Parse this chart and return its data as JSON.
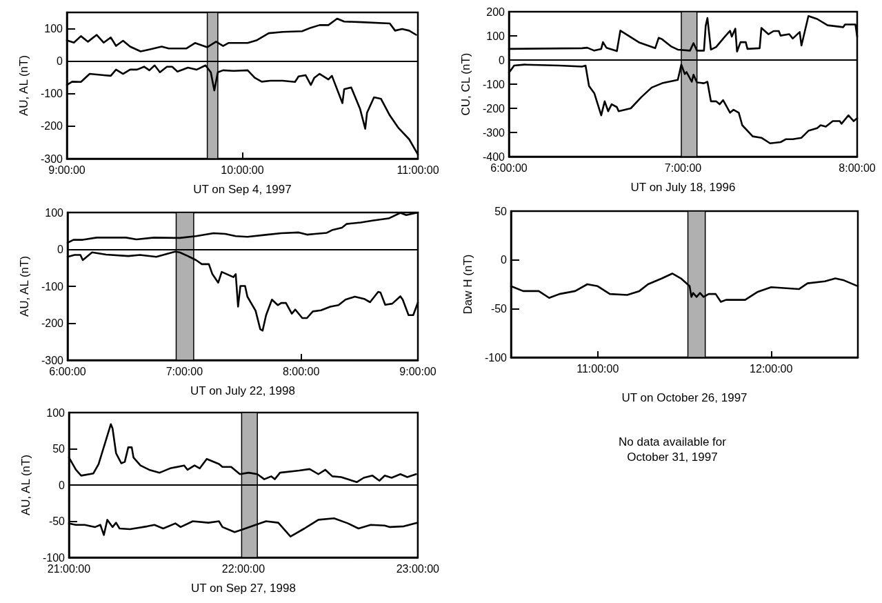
{
  "chart_data": [
    {
      "type": "line",
      "xlabel": "UT on Sep 4, 1997",
      "ylabel": "AU, AL (nT)",
      "marker": "none",
      "line_style": "solid",
      "grid": false,
      "xlim": [
        9,
        11
      ],
      "xticks": [
        {
          "value": 9,
          "label": "9:00:00"
        },
        {
          "value": 10,
          "label": "10:00:00"
        },
        {
          "value": 11,
          "label": "11:00:00"
        }
      ],
      "ylim": [
        -300,
        150
      ],
      "yticks": [
        -300,
        -200,
        -100,
        0,
        100
      ],
      "ref_lines": [
        {
          "axis": "y",
          "value": 0,
          "color": "#000000"
        }
      ],
      "bands": [
        {
          "axis": "x",
          "from": 9.8,
          "to": 9.86,
          "color": "#b0b0b0"
        }
      ],
      "series": [
        {
          "color": "#000000",
          "x": [
            9.0,
            9.04,
            9.08,
            9.12,
            9.17,
            9.21,
            9.25,
            9.28,
            9.32,
            9.36,
            9.42,
            9.47,
            9.54,
            9.58,
            9.68,
            9.73,
            9.8,
            9.85,
            9.89,
            9.92,
            10.03,
            10.08,
            10.15,
            10.23,
            10.34,
            10.39,
            10.44,
            10.49,
            10.54,
            10.58,
            10.68,
            10.84,
            10.87,
            10.91,
            10.95,
            10.99
          ],
          "values": [
            64,
            57,
            77,
            60,
            81,
            57,
            73,
            47,
            63,
            45,
            30,
            36,
            45,
            39,
            39,
            56,
            43,
            60,
            47,
            56,
            56,
            64,
            86,
            90,
            92,
            103,
            111,
            111,
            131,
            122,
            120,
            116,
            94,
            99,
            94,
            81
          ]
        },
        {
          "color": "#000000",
          "x": [
            9.0,
            9.03,
            9.08,
            9.13,
            9.21,
            9.25,
            9.28,
            9.32,
            9.36,
            9.4,
            9.44,
            9.47,
            9.5,
            9.53,
            9.57,
            9.6,
            9.63,
            9.69,
            9.74,
            9.79,
            9.82,
            9.84,
            9.86,
            9.89,
            9.95,
            10.03,
            10.07,
            10.11,
            10.16,
            10.23,
            10.3,
            10.32,
            10.36,
            10.39,
            10.41,
            10.44,
            10.49,
            10.51,
            10.57,
            10.58,
            10.62,
            10.67,
            10.7,
            10.71,
            10.75,
            10.79,
            10.84,
            10.89,
            10.95,
            11.0
          ],
          "values": [
            -73,
            -63,
            -64,
            -39,
            -43,
            -45,
            -26,
            -39,
            -26,
            -26,
            -17,
            -28,
            -13,
            -34,
            -17,
            -17,
            -32,
            -20,
            -26,
            -13,
            -34,
            -90,
            -34,
            -28,
            -30,
            -28,
            -51,
            -63,
            -60,
            -60,
            -64,
            -47,
            -43,
            -73,
            -51,
            -39,
            -56,
            -45,
            -129,
            -86,
            -81,
            -146,
            -208,
            -159,
            -111,
            -116,
            -167,
            -206,
            -240,
            -287
          ]
        }
      ]
    },
    {
      "type": "line",
      "xlabel": "UT on July 18, 1996",
      "ylabel": "CU, CL (nT)",
      "marker": "none",
      "line_style": "solid",
      "grid": false,
      "xlim": [
        6,
        8
      ],
      "xticks": [
        {
          "value": 6,
          "label": "6:00:00"
        },
        {
          "value": 7,
          "label": "7:00:00"
        },
        {
          "value": 8,
          "label": "8:00:00"
        }
      ],
      "ylim": [
        -400,
        200
      ],
      "yticks": [
        -400,
        -300,
        -200,
        -100,
        0,
        100,
        200
      ],
      "ref_lines": [
        {
          "axis": "y",
          "value": 0,
          "color": "#000000"
        }
      ],
      "bands": [
        {
          "axis": "x",
          "from": 6.99,
          "to": 7.08,
          "color": "#b0b0b0"
        }
      ],
      "series": [
        {
          "color": "#000000",
          "x": [
            6.0,
            6.42,
            6.45,
            6.49,
            6.53,
            6.54,
            6.56,
            6.62,
            6.64,
            6.75,
            6.84,
            6.86,
            6.88,
            6.93,
            6.97,
            7.04,
            7.06,
            7.08,
            7.12,
            7.13,
            7.14,
            7.16,
            7.19,
            7.24,
            7.27,
            7.28,
            7.3,
            7.31,
            7.33,
            7.36,
            7.37,
            7.44,
            7.45,
            7.49,
            7.52,
            7.55,
            7.56,
            7.61,
            7.63,
            7.67,
            7.68,
            7.72,
            7.77,
            7.83,
            7.92,
            7.93,
            7.99,
            8.0
          ],
          "values": [
            46,
            49,
            51,
            39,
            46,
            74,
            51,
            37,
            122,
            72,
            49,
            92,
            86,
            57,
            43,
            39,
            70,
            39,
            39,
            141,
            174,
            43,
            54,
            97,
            121,
            97,
            130,
            35,
            74,
            74,
            46,
            49,
            133,
            107,
            120,
            120,
            101,
            107,
            89,
            116,
            60,
            182,
            170,
            144,
            136,
            147,
            147,
            97
          ]
        },
        {
          "color": "#000000",
          "x": [
            6.0,
            6.03,
            6.09,
            6.29,
            6.42,
            6.44,
            6.46,
            6.49,
            6.53,
            6.55,
            6.57,
            6.59,
            6.62,
            6.63,
            6.7,
            6.76,
            6.82,
            6.88,
            6.97,
            6.99,
            7.01,
            7.02,
            7.05,
            7.06,
            7.08,
            7.12,
            7.14,
            7.16,
            7.19,
            7.21,
            7.23,
            7.27,
            7.29,
            7.32,
            7.34,
            7.4,
            7.45,
            7.5,
            7.56,
            7.59,
            7.63,
            7.68,
            7.72,
            7.77,
            7.79,
            7.82,
            7.86,
            7.9,
            7.91,
            7.95,
            7.98,
            8.0
          ],
          "values": [
            -53,
            -23,
            -19,
            -23,
            -27,
            -23,
            -108,
            -137,
            -229,
            -171,
            -212,
            -183,
            -195,
            -212,
            -200,
            -154,
            -114,
            -96,
            -82,
            -19,
            -58,
            -50,
            -90,
            -61,
            -93,
            -96,
            -90,
            -171,
            -171,
            -183,
            -166,
            -218,
            -206,
            -218,
            -270,
            -316,
            -322,
            -345,
            -340,
            -328,
            -328,
            -322,
            -293,
            -282,
            -270,
            -276,
            -253,
            -253,
            -264,
            -229,
            -253,
            -241
          ]
        }
      ]
    },
    {
      "type": "line",
      "xlabel": "UT on July 22, 1998",
      "ylabel": "AU, AL (nT)",
      "marker": "none",
      "line_style": "solid",
      "grid": false,
      "xlim": [
        6,
        9
      ],
      "xticks": [
        {
          "value": 6,
          "label": "6:00:00"
        },
        {
          "value": 7,
          "label": "7:00:00"
        },
        {
          "value": 8,
          "label": "8:00:00"
        },
        {
          "value": 9,
          "label": "9:00:00"
        }
      ],
      "ylim": [
        -300,
        100
      ],
      "yticks": [
        -300,
        -200,
        -100,
        0,
        100
      ],
      "ref_lines": [
        {
          "axis": "y",
          "value": 0,
          "color": "#000000"
        }
      ],
      "bands": [
        {
          "axis": "x",
          "from": 6.93,
          "to": 7.08,
          "color": "#b0b0b0"
        }
      ],
      "series": [
        {
          "color": "#000000",
          "x": [
            6.0,
            6.05,
            6.13,
            6.25,
            6.5,
            6.59,
            6.74,
            6.96,
            7.1,
            7.25,
            7.35,
            7.44,
            7.54,
            7.71,
            7.83,
            7.98,
            8.05,
            8.12,
            8.22,
            8.27,
            8.35,
            8.39,
            8.51,
            8.61,
            8.75,
            8.85,
            8.9,
            9.0
          ],
          "values": [
            18,
            26,
            26,
            32,
            32,
            27,
            32,
            31,
            36,
            44,
            42,
            36,
            34,
            40,
            44,
            46,
            40,
            42,
            45,
            53,
            59,
            69,
            73,
            78,
            84,
            99,
            93,
            100
          ]
        },
        {
          "color": "#000000",
          "x": [
            6.0,
            6.06,
            6.11,
            6.13,
            6.21,
            6.33,
            6.52,
            6.62,
            6.76,
            6.92,
            6.96,
            7.03,
            7.1,
            7.15,
            7.21,
            7.24,
            7.29,
            7.32,
            7.42,
            7.44,
            7.46,
            7.48,
            7.52,
            7.54,
            7.61,
            7.65,
            7.67,
            7.7,
            7.75,
            7.8,
            7.83,
            7.87,
            7.92,
            7.95,
            8.01,
            8.05,
            8.1,
            8.17,
            8.25,
            8.32,
            8.38,
            8.46,
            8.54,
            8.59,
            8.66,
            8.68,
            8.72,
            8.78,
            8.85,
            8.87,
            8.92,
            8.96,
            9.0
          ],
          "values": [
            -20,
            -15,
            -15,
            -29,
            -8,
            -14,
            -18,
            -15,
            -20,
            -6,
            -8,
            -18,
            -29,
            -40,
            -40,
            -67,
            -90,
            -61,
            -75,
            -67,
            -155,
            -99,
            -99,
            -128,
            -166,
            -216,
            -220,
            -178,
            -136,
            -151,
            -145,
            -145,
            -174,
            -163,
            -186,
            -186,
            -168,
            -165,
            -155,
            -151,
            -136,
            -128,
            -134,
            -143,
            -115,
            -117,
            -150,
            -147,
            -127,
            -136,
            -178,
            -178,
            -144
          ]
        }
      ]
    },
    {
      "type": "line",
      "xlabel": "UT on October 26, 1997",
      "ylabel": "Daw H (nT)",
      "marker": "none",
      "line_style": "solid",
      "grid": false,
      "xlim": [
        10.5,
        12.5
      ],
      "xticks": [
        {
          "value": 11,
          "label": "11:00:00"
        },
        {
          "value": 12,
          "label": "12:00:00"
        }
      ],
      "ylim": [
        -100,
        50
      ],
      "yticks": [
        -100,
        -50,
        0,
        50
      ],
      "bands": [
        {
          "axis": "x",
          "from": 11.52,
          "to": 11.62,
          "color": "#b0b0b0"
        }
      ],
      "series": [
        {
          "color": "#000000",
          "x": [
            10.5,
            10.57,
            10.66,
            10.72,
            10.78,
            10.87,
            10.94,
            11.0,
            11.07,
            11.17,
            11.24,
            11.29,
            11.37,
            11.43,
            11.48,
            11.53,
            11.54,
            11.55,
            11.57,
            11.59,
            11.61,
            11.64,
            11.68,
            11.71,
            11.74,
            11.85,
            11.92,
            12.0,
            12.16,
            12.21,
            12.31,
            12.37,
            12.42,
            12.5
          ],
          "values": [
            -27,
            -32,
            -32,
            -39,
            -35,
            -32,
            -25,
            -27,
            -35,
            -36,
            -32,
            -25,
            -19,
            -14,
            -19,
            -27,
            -38,
            -34,
            -38,
            -34,
            -38,
            -35,
            -35,
            -43,
            -41,
            -41,
            -33,
            -28,
            -30,
            -24,
            -22,
            -19,
            -21,
            -27
          ]
        }
      ]
    },
    {
      "type": "line",
      "xlabel": "UT on Sep 27, 1998",
      "ylabel": "AU, AL (nT)",
      "marker": "none",
      "line_style": "solid",
      "grid": false,
      "xlim": [
        21,
        23
      ],
      "xticks": [
        {
          "value": 21,
          "label": "21:00:00"
        },
        {
          "value": 22,
          "label": "22:00:00"
        },
        {
          "value": 23,
          "label": "23:00:00"
        }
      ],
      "ylim": [
        -100,
        100
      ],
      "yticks": [
        -100,
        -50,
        0,
        50,
        100
      ],
      "ref_lines": [
        {
          "axis": "y",
          "value": 0,
          "color": "#000000"
        }
      ],
      "bands": [
        {
          "axis": "x",
          "from": 21.99,
          "to": 22.08,
          "color": "#b0b0b0"
        }
      ],
      "series": [
        {
          "color": "#000000",
          "x": [
            21.0,
            21.04,
            21.07,
            21.14,
            21.17,
            21.24,
            21.25,
            21.27,
            21.3,
            21.32,
            21.34,
            21.36,
            21.37,
            21.41,
            21.46,
            21.52,
            21.58,
            21.66,
            21.68,
            21.72,
            21.75,
            21.79,
            21.86,
            21.88,
            21.93,
            21.98,
            22.03,
            22.08,
            22.12,
            22.16,
            22.18,
            22.21,
            22.32,
            22.38,
            22.43,
            22.47,
            22.51,
            22.56,
            22.65,
            22.69,
            22.74,
            22.78,
            22.81,
            22.85,
            22.9,
            22.94,
            22.99
          ],
          "values": [
            38,
            21,
            13,
            16,
            29,
            84,
            78,
            44,
            30,
            32,
            52,
            52,
            38,
            27,
            21,
            17,
            23,
            27,
            21,
            27,
            23,
            36,
            29,
            25,
            25,
            15,
            17,
            15,
            8,
            12,
            8,
            17,
            20,
            22,
            15,
            21,
            12,
            11,
            4,
            10,
            13,
            6,
            13,
            10,
            15,
            11,
            15
          ]
        },
        {
          "color": "#000000",
          "x": [
            21.0,
            21.04,
            21.09,
            21.15,
            21.18,
            21.2,
            21.22,
            21.25,
            21.27,
            21.29,
            21.35,
            21.45,
            21.49,
            21.54,
            21.61,
            21.64,
            21.71,
            21.8,
            21.86,
            21.88,
            21.95,
            22.0,
            22.07,
            22.13,
            22.2,
            22.27,
            22.35,
            22.43,
            22.52,
            22.6,
            22.66,
            22.73,
            22.81,
            22.84,
            22.92,
            23.0
          ],
          "values": [
            -53,
            -55,
            -55,
            -58,
            -55,
            -69,
            -48,
            -58,
            -52,
            -60,
            -61,
            -57,
            -55,
            -60,
            -53,
            -58,
            -50,
            -52,
            -50,
            -58,
            -65,
            -61,
            -55,
            -50,
            -52,
            -71,
            -60,
            -48,
            -46,
            -53,
            -60,
            -55,
            -56,
            -58,
            -57,
            -52
          ]
        }
      ]
    },
    {
      "type": "other",
      "annotations": [
        "No data available for October 31, 1997"
      ]
    }
  ]
}
